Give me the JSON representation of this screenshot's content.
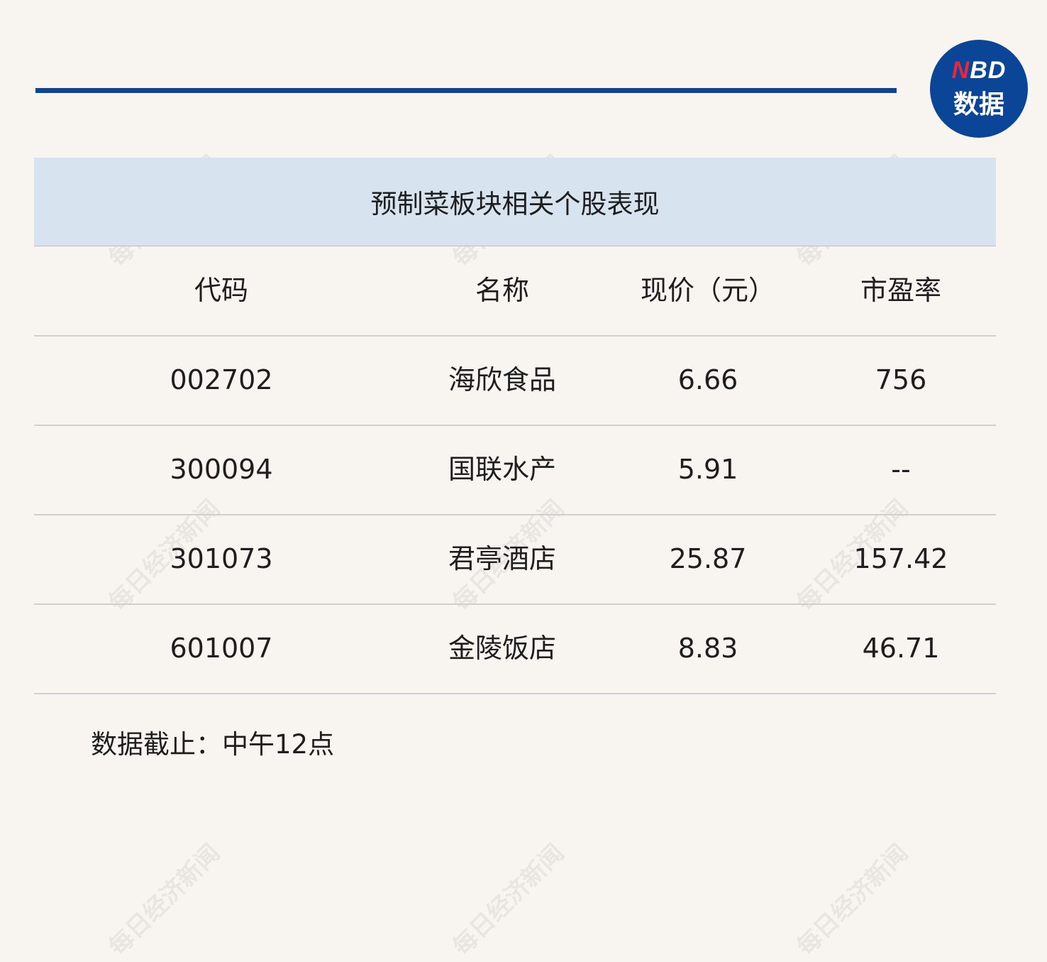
{
  "logo": {
    "line1_accent": "N",
    "line1_rest": "BD",
    "line2": "数据"
  },
  "watermark": "每日经济新闻",
  "table": {
    "title": "预制菜板块相关个股表现",
    "columns": [
      "代码",
      "名称",
      "现价（元）",
      "市盈率"
    ],
    "rows": [
      [
        "002702",
        "海欣食品",
        "6.66",
        "756"
      ],
      [
        "300094",
        "国联水产",
        "5.91",
        "--"
      ],
      [
        "301073",
        "君亭酒店",
        "25.87",
        "157.42"
      ],
      [
        "601007",
        "金陵饭店",
        "8.83",
        "46.71"
      ]
    ]
  },
  "footnote": "数据截止：中午12点",
  "colors": {
    "accent": "#0b4597",
    "header_bg": "#d7e4f0",
    "logo_red": "#e8283a"
  }
}
